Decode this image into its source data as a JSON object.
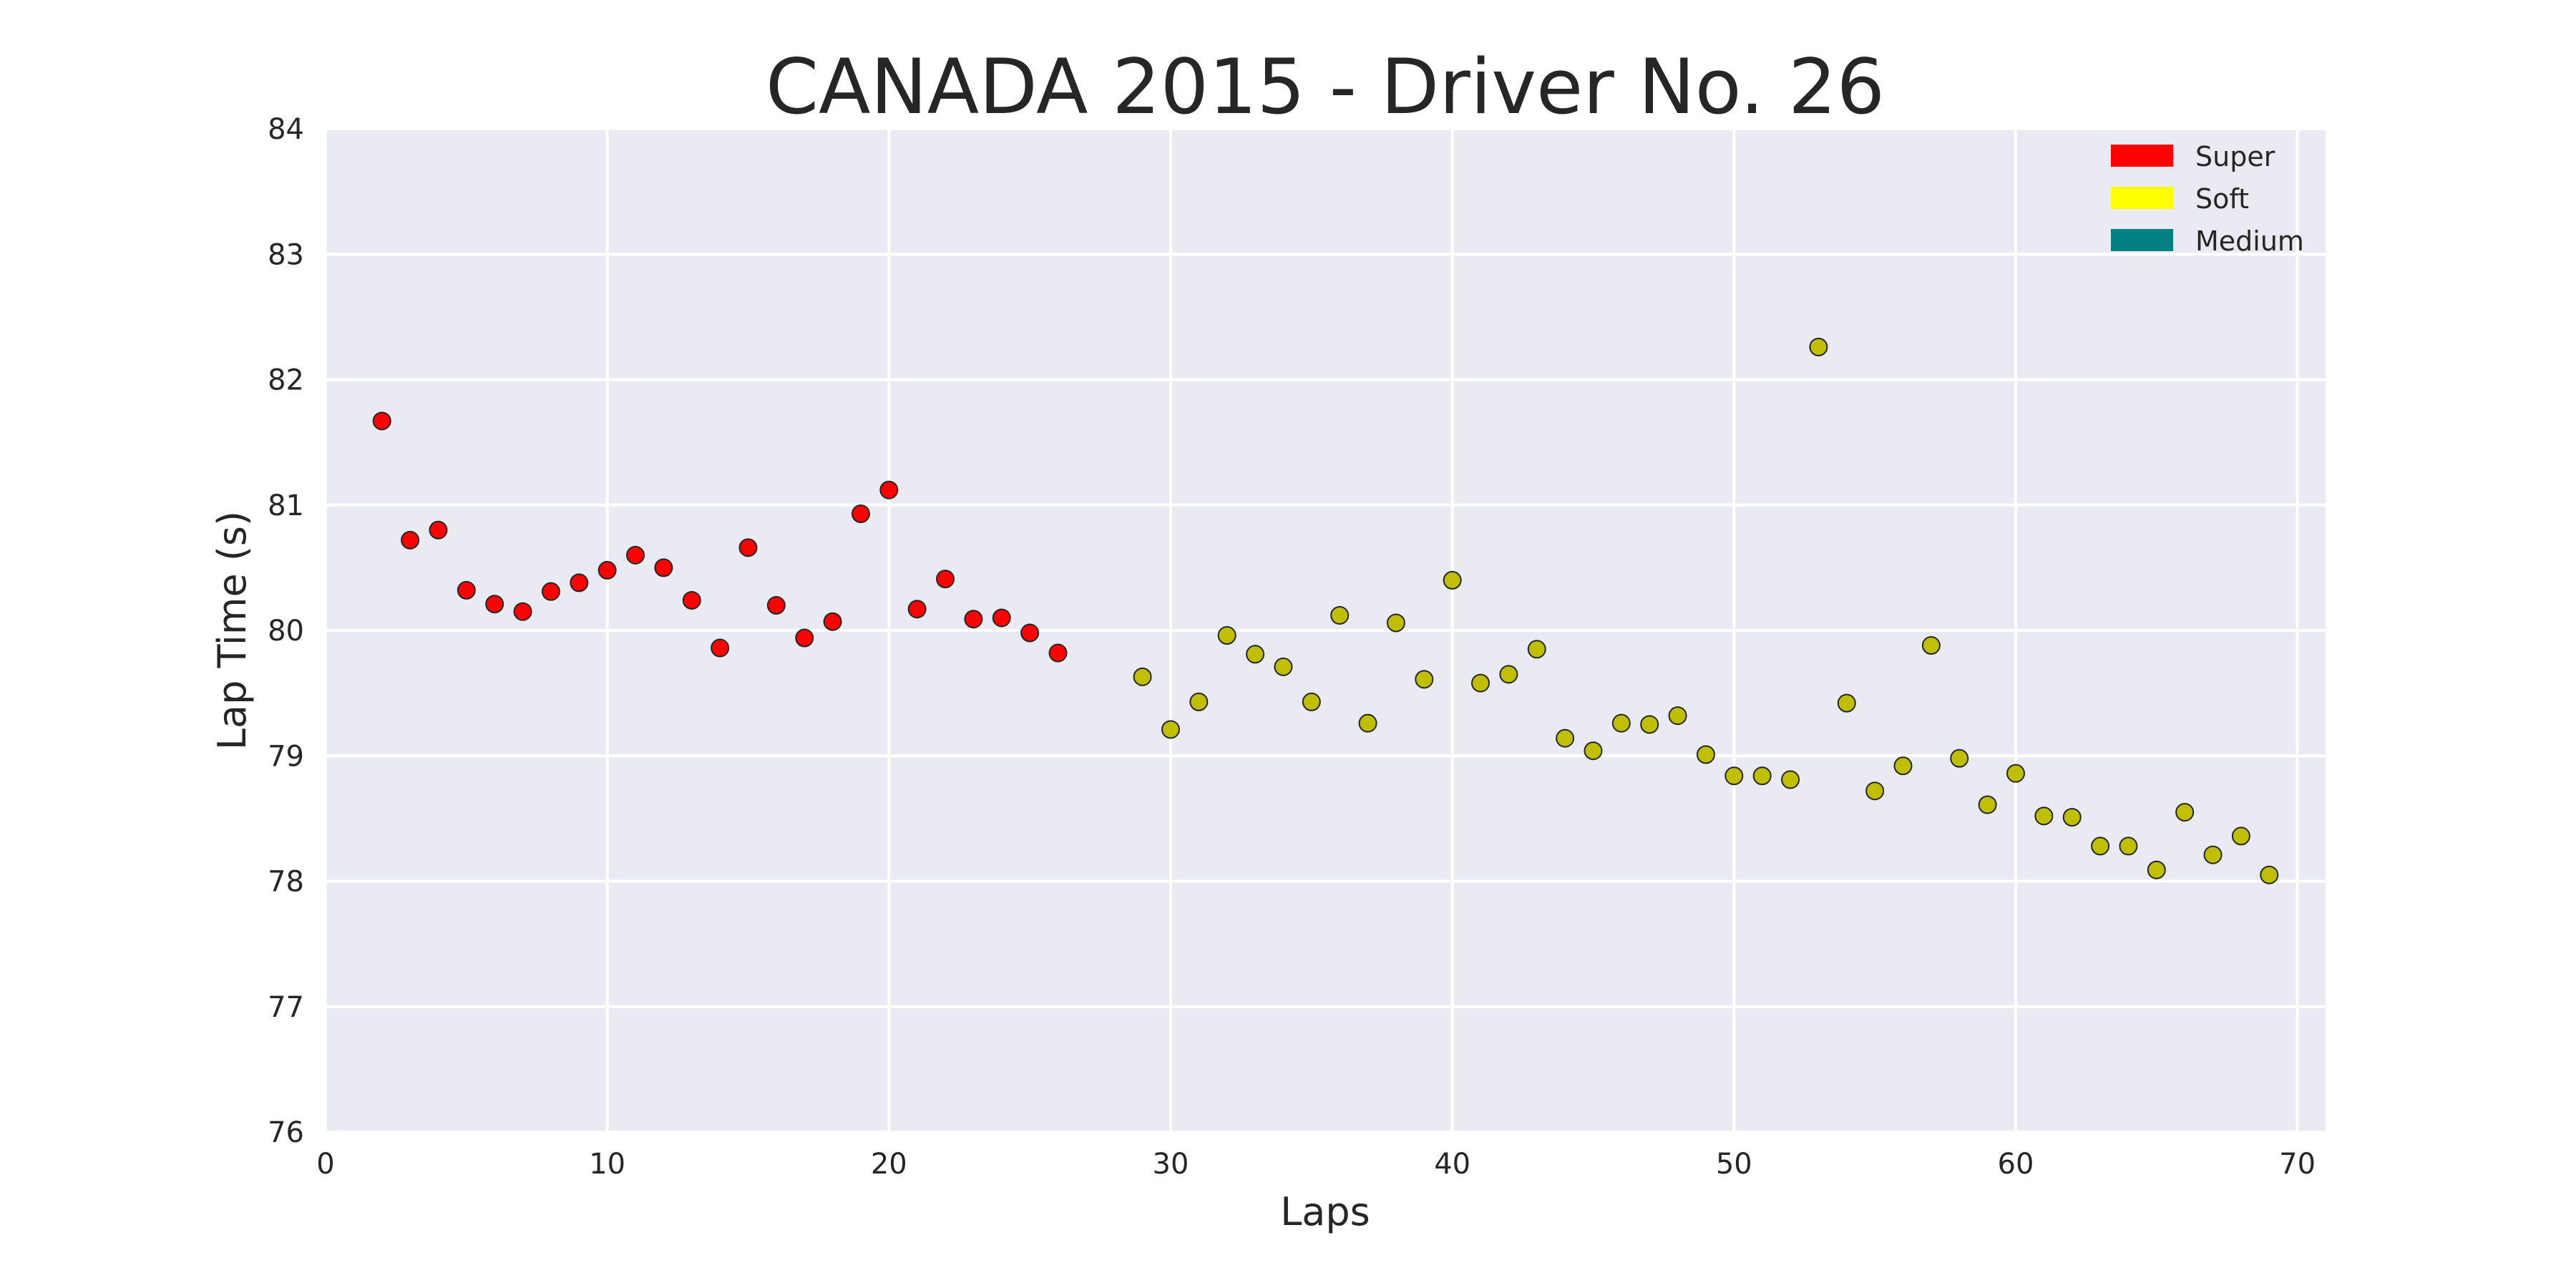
{
  "chart_data": {
    "type": "scatter",
    "title": "CANADA 2015 - Driver No. 26",
    "xlabel": "Laps",
    "ylabel": "Lap Time (s)",
    "xlim": [
      0,
      71
    ],
    "ylim": [
      76,
      84
    ],
    "xticks": [
      0,
      10,
      20,
      30,
      40,
      50,
      60,
      70
    ],
    "yticks": [
      76,
      77,
      78,
      79,
      80,
      81,
      82,
      83,
      84
    ],
    "grid": true,
    "background": "#eaeaf2",
    "legend_position": "top-right",
    "legend": [
      {
        "label": "Super",
        "color": "#ff0000"
      },
      {
        "label": "Soft",
        "color": "#ffff00"
      },
      {
        "label": "Medium",
        "color": "#008080"
      }
    ],
    "series": [
      {
        "name": "Super",
        "color": "#ff0000",
        "x": [
          2,
          3,
          4,
          5,
          6,
          7,
          8,
          9,
          10,
          11,
          12,
          13,
          14,
          15,
          16,
          17,
          18,
          19,
          20,
          21,
          22,
          23,
          24,
          25,
          26
        ],
        "y": [
          81.67,
          80.72,
          80.8,
          80.32,
          80.21,
          80.15,
          80.31,
          80.38,
          80.48,
          80.6,
          80.5,
          80.24,
          79.86,
          80.66,
          80.2,
          79.94,
          80.07,
          80.93,
          81.12,
          80.17,
          80.41,
          80.09,
          80.1,
          79.98,
          79.82
        ]
      },
      {
        "name": "Soft",
        "color": "#bfbf00",
        "x": [
          29,
          30,
          31,
          32,
          33,
          34,
          35,
          36,
          37,
          38,
          39,
          40,
          41,
          42,
          43,
          44,
          45,
          46,
          47,
          48,
          49,
          50,
          51,
          52,
          53,
          54,
          55,
          56,
          57,
          58,
          59,
          60,
          61,
          62,
          63,
          64,
          65,
          66,
          67,
          68,
          69
        ],
        "y": [
          79.63,
          79.21,
          79.43,
          79.96,
          79.81,
          79.71,
          79.43,
          80.12,
          79.26,
          80.06,
          79.61,
          80.4,
          79.58,
          79.65,
          79.85,
          79.14,
          79.04,
          79.26,
          79.25,
          79.32,
          79.01,
          78.84,
          78.84,
          78.81,
          82.26,
          79.42,
          78.72,
          78.92,
          79.88,
          78.98,
          78.61,
          78.86,
          78.52,
          78.51,
          78.28,
          78.28,
          78.09,
          78.55,
          78.21,
          78.36,
          78.05
        ]
      }
    ]
  }
}
